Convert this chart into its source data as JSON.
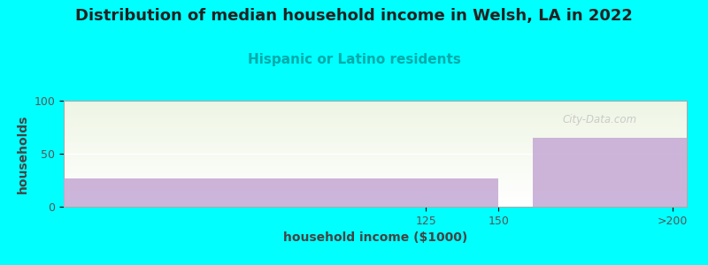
{
  "title": "Distribution of median household income in Welsh, LA in 2022",
  "subtitle": "Hispanic or Latino residents",
  "xlabel": "household income ($1000)",
  "ylabel": "households",
  "background_color": "#00FFFF",
  "plot_bg_color_top": "#eef5e4",
  "bar_color": "#c4a8d4",
  "bar_color_alpha": 0.85,
  "ylim": [
    0,
    100
  ],
  "yticks": [
    0,
    50,
    100
  ],
  "bars": [
    {
      "x_left": 0,
      "x_right": 150,
      "height": 27,
      "label": "0-150"
    },
    {
      "x_left": 162,
      "x_right": 215,
      "height": 65,
      "label": ">200"
    }
  ],
  "xtick_positions": [
    125,
    150,
    210
  ],
  "xtick_labels": [
    "125",
    "150",
    ">200"
  ],
  "title_fontsize": 13,
  "subtitle_fontsize": 11,
  "subtitle_color": "#00AAAA",
  "axis_label_fontsize": 10,
  "tick_fontsize": 9,
  "watermark": "City-Data.com",
  "xlim": [
    0,
    215
  ]
}
